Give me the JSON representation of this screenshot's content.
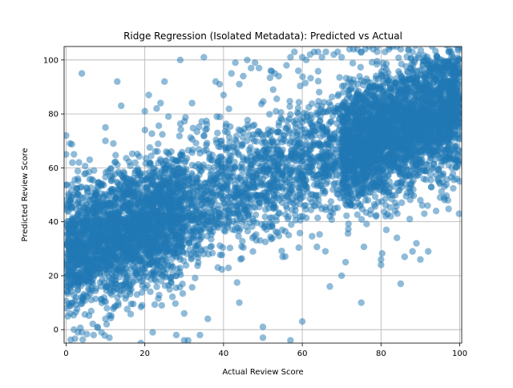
{
  "chart_data": {
    "type": "scatter",
    "title": "Ridge Regression (Isolated Metadata): Predicted vs Actual",
    "xlabel": "Actual Review Score",
    "ylabel": "Predicted Review Score",
    "xlim": [
      -0.5,
      100.5
    ],
    "ylim": [
      -5,
      105
    ],
    "xticks": [
      0,
      20,
      40,
      60,
      80,
      100
    ],
    "yticks": [
      0,
      20,
      40,
      60,
      80,
      100
    ],
    "xtick_labels": [
      "0",
      "20",
      "40",
      "60",
      "80",
      "100"
    ],
    "ytick_labels": [
      "0",
      "20",
      "40",
      "60",
      "80",
      "100"
    ],
    "grid": true,
    "marker_color": "#1f77b4",
    "marker_opacity": 0.5,
    "series": [
      {
        "trend": {
          "slope": 0.55,
          "intercept": 28.5
        },
        "spread_sd": 11.5,
        "x": [
          0,
          0,
          0,
          0,
          1,
          1,
          2,
          2,
          3,
          3,
          4,
          5,
          5,
          6,
          7,
          8,
          9,
          10,
          10,
          11,
          12,
          12,
          13,
          14,
          15,
          16,
          17,
          18,
          19,
          20,
          21,
          22,
          23,
          24,
          25,
          26,
          27,
          28,
          29,
          30,
          31,
          32,
          33,
          34,
          35,
          36,
          37,
          38,
          39,
          40,
          41,
          42,
          43,
          44,
          45,
          46,
          47,
          48,
          49,
          50,
          51,
          52,
          53,
          54,
          55,
          56,
          57,
          58,
          59,
          60,
          61,
          62,
          63,
          64,
          65,
          66,
          67,
          68,
          69,
          70,
          71,
          72,
          73,
          74,
          75,
          76,
          77,
          78,
          79,
          80,
          81,
          82,
          83,
          84,
          85,
          86,
          87,
          88,
          89,
          90,
          91,
          92,
          93,
          94,
          95,
          96,
          97,
          98,
          99,
          100,
          100,
          100,
          13,
          22,
          30,
          36,
          44,
          57,
          60,
          67,
          50,
          28,
          80,
          85,
          88,
          90,
          70,
          75,
          95,
          100,
          10,
          4,
          2,
          1
        ],
        "y": [
          72,
          65,
          48,
          8,
          69,
          39,
          0,
          50,
          56,
          -1,
          -1,
          35,
          58,
          63,
          -2,
          1,
          -1,
          70,
          4,
          -3,
          69,
          52,
          92,
          83,
          40,
          39,
          52,
          13,
          -5,
          81,
          87,
          -1,
          82,
          84,
          92,
          79,
          63,
          -2,
          100,
          -4,
          -4,
          84,
          44,
          -2,
          101,
          40,
          42,
          92,
          91,
          87,
          38,
          95,
          99,
          91,
          94,
          100,
          97,
          99,
          97,
          -3,
          67,
          96,
          95,
          94,
          27,
          98,
          101,
          103,
          96,
          101,
          100,
          102,
          103,
          103,
          101,
          103,
          42,
          102,
          103,
          101,
          25,
          104,
          104,
          104,
          103,
          104,
          105,
          104,
          105,
          26,
          103,
          104,
          105,
          105,
          104,
          27,
          104,
          103,
          32,
          48,
          43,
          29,
          105,
          44,
          54,
          49,
          48,
          60,
          60,
          105,
          75,
          55,
          12,
          20,
          6,
          4,
          10,
          -4,
          3,
          16,
          1,
          20,
          24,
          17,
          29,
          26,
          20,
          10,
          49,
          71,
          75,
          95,
          65,
          6
        ]
      }
    ]
  }
}
